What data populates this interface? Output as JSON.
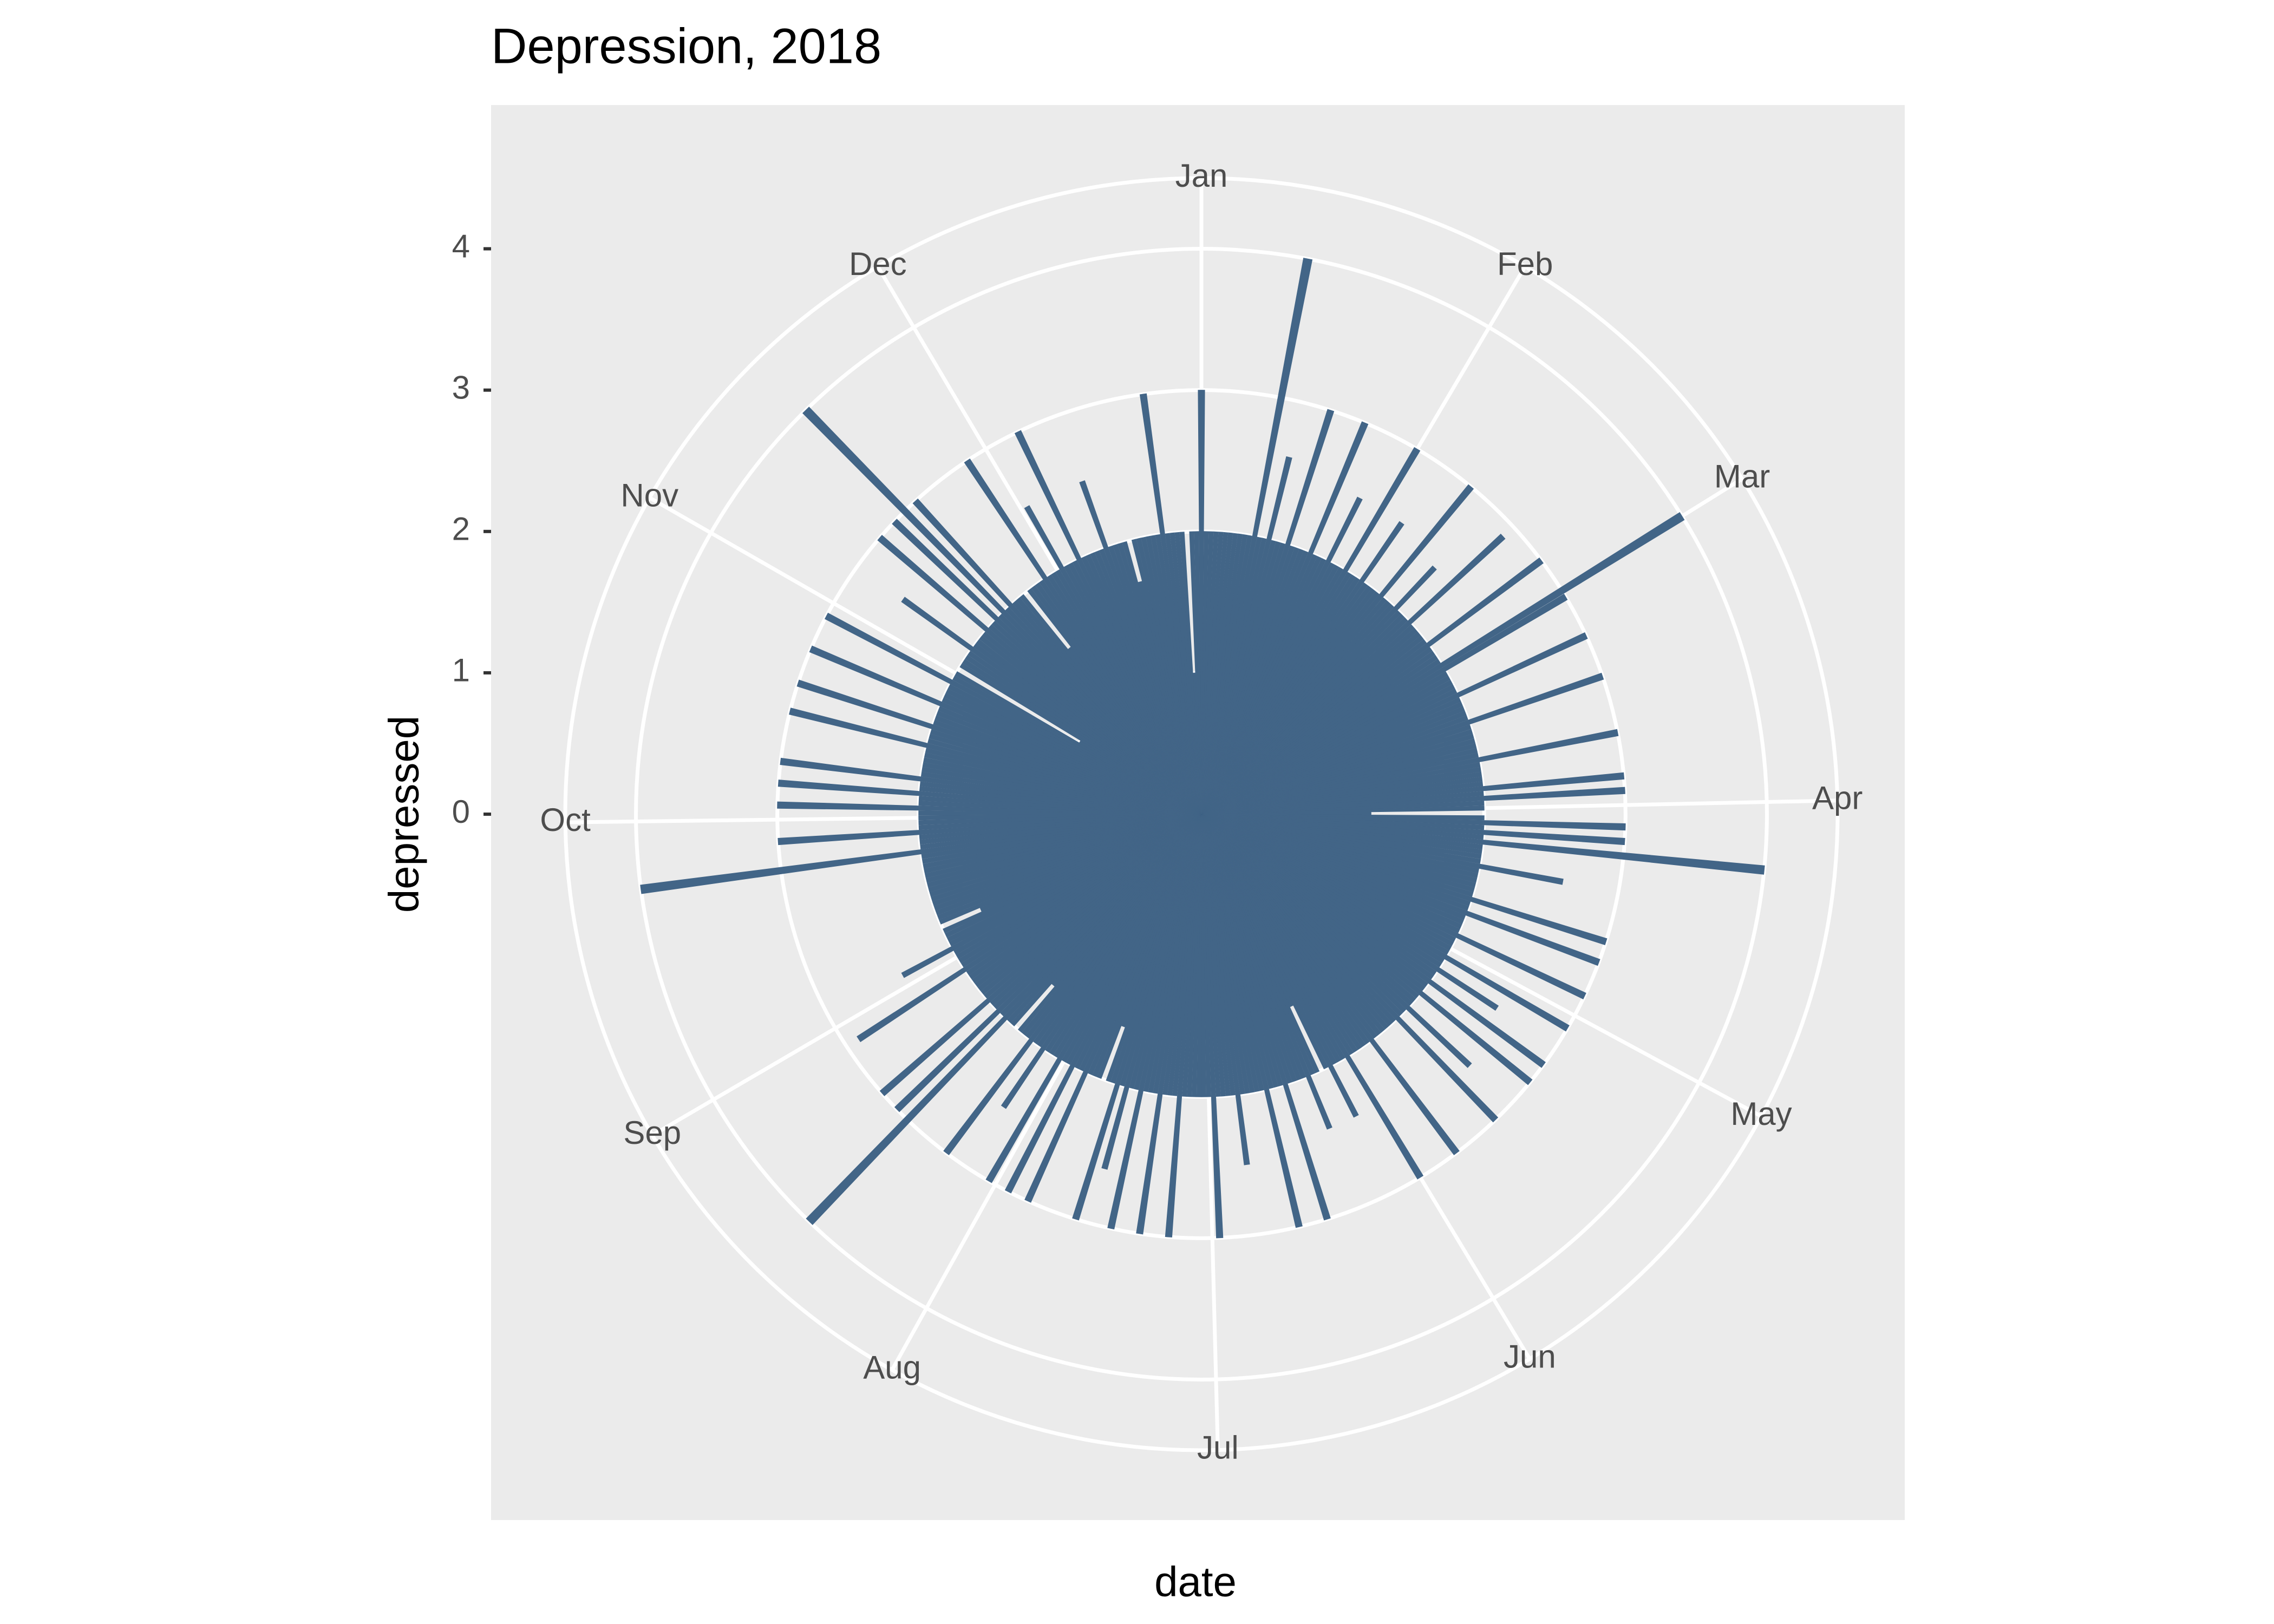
{
  "chart_data": {
    "type": "polar-bar",
    "title": "Depression, 2018",
    "x_label": "date",
    "y_label": "depressed",
    "color": "#426587",
    "grid": true,
    "xlim": [
      1,
      366
    ],
    "xticks": [
      {
        "value": 1,
        "label": "Jan"
      },
      {
        "value": 32,
        "label": "Feb"
      },
      {
        "value": 60,
        "label": "Mar"
      },
      {
        "value": 91,
        "label": "Apr"
      },
      {
        "value": 121,
        "label": "May"
      },
      {
        "value": 152,
        "label": "Jun"
      },
      {
        "value": 182,
        "label": "Jul"
      },
      {
        "value": 213,
        "label": "Aug"
      },
      {
        "value": 244,
        "label": "Sep"
      },
      {
        "value": 274,
        "label": "Oct"
      },
      {
        "value": 305,
        "label": "Nov"
      },
      {
        "value": 335,
        "label": "Dec"
      }
    ],
    "ylim": [
      0,
      4.5
    ],
    "yticks": [
      0,
      1,
      2,
      3,
      4
    ],
    "x": [
      1,
      2,
      3,
      4,
      5,
      6,
      7,
      8,
      9,
      10,
      11,
      12,
      13,
      14,
      15,
      16,
      17,
      18,
      19,
      20,
      21,
      22,
      23,
      24,
      25,
      26,
      27,
      28,
      29,
      30,
      31,
      32,
      33,
      34,
      35,
      36,
      37,
      38,
      39,
      40,
      41,
      42,
      43,
      44,
      45,
      46,
      47,
      48,
      49,
      50,
      51,
      52,
      53,
      54,
      55,
      56,
      57,
      58,
      59,
      60,
      61,
      62,
      63,
      64,
      65,
      66,
      67,
      68,
      69,
      70,
      71,
      72,
      73,
      74,
      75,
      76,
      77,
      78,
      79,
      80,
      81,
      82,
      83,
      84,
      85,
      86,
      87,
      88,
      89,
      90,
      91,
      92,
      93,
      94,
      95,
      96,
      97,
      98,
      99,
      100,
      101,
      102,
      103,
      104,
      105,
      106,
      107,
      108,
      109,
      110,
      111,
      112,
      113,
      114,
      115,
      116,
      117,
      118,
      119,
      120,
      121,
      122,
      123,
      124,
      125,
      126,
      127,
      128,
      129,
      130,
      131,
      132,
      133,
      134,
      135,
      136,
      137,
      138,
      139,
      140,
      141,
      142,
      143,
      144,
      145,
      146,
      147,
      148,
      149,
      150,
      151,
      152,
      153,
      154,
      155,
      156,
      157,
      158,
      159,
      160,
      161,
      162,
      163,
      164,
      165,
      166,
      167,
      168,
      169,
      170,
      171,
      172,
      173,
      174,
      175,
      176,
      177,
      178,
      179,
      180,
      181,
      182,
      183,
      184,
      185,
      186,
      187,
      188,
      189,
      190,
      191,
      192,
      193,
      194,
      195,
      196,
      197,
      198,
      199,
      200,
      201,
      202,
      203,
      204,
      205,
      206,
      207,
      208,
      209,
      210,
      211,
      212,
      213,
      214,
      215,
      216,
      217,
      218,
      219,
      220,
      221,
      222,
      223,
      224,
      225,
      226,
      227,
      228,
      229,
      230,
      231,
      232,
      233,
      234,
      235,
      236,
      237,
      238,
      239,
      240,
      241,
      242,
      243,
      244,
      245,
      246,
      247,
      248,
      249,
      250,
      251,
      252,
      253,
      254,
      255,
      256,
      257,
      258,
      259,
      260,
      261,
      262,
      263,
      264,
      265,
      266,
      267,
      268,
      269,
      270,
      271,
      272,
      273,
      274,
      275,
      276,
      277,
      278,
      279,
      280,
      281,
      282,
      283,
      284,
      285,
      286,
      287,
      288,
      289,
      290,
      291,
      292,
      293,
      294,
      295,
      296,
      297,
      298,
      299,
      300,
      301,
      302,
      303,
      304,
      305,
      306,
      307,
      308,
      309,
      310,
      311,
      312,
      313,
      314,
      315,
      316,
      317,
      318,
      319,
      320,
      321,
      322,
      323,
      324,
      325,
      326,
      327,
      328,
      329,
      330,
      331,
      332,
      333,
      334,
      335,
      336,
      337,
      338,
      339,
      340,
      341,
      342,
      343,
      344,
      345,
      346,
      347,
      348,
      349,
      350,
      351,
      352,
      353,
      354,
      355,
      356,
      357,
      358,
      359,
      360,
      361,
      362,
      363,
      364,
      365
    ],
    "values": [
      3,
      2,
      2,
      2,
      2,
      2,
      2,
      2,
      2,
      2,
      2,
      4,
      2,
      2,
      2.6,
      2,
      2,
      2,
      3,
      2,
      2,
      2,
      2,
      3,
      2,
      2,
      2,
      2.5,
      2,
      2,
      2,
      3,
      2,
      2,
      2,
      2.5,
      2,
      2,
      2,
      2,
      3,
      2,
      2,
      2,
      2.4,
      2,
      2,
      2,
      2.9,
      2,
      2,
      2,
      2,
      2,
      3,
      2,
      2,
      2,
      2,
      4,
      3,
      2,
      2,
      2,
      2,
      2,
      3,
      2,
      2,
      2,
      2,
      2,
      3,
      2,
      2,
      2,
      2,
      2,
      2,
      2,
      3,
      2,
      2,
      2,
      2,
      2,
      3,
      2,
      3,
      2,
      2,
      1.2,
      2,
      3,
      2,
      3,
      2,
      4,
      2,
      2,
      2,
      2,
      2.6,
      2,
      2,
      2,
      2,
      2,
      2,
      3,
      2,
      2,
      3,
      2,
      2,
      2,
      2,
      3,
      2,
      2,
      2,
      2,
      3,
      2,
      2,
      2.5,
      2,
      2,
      3,
      2,
      2,
      3,
      2,
      2,
      2,
      2.6,
      2,
      2,
      3,
      2,
      2,
      2,
      2,
      2,
      2,
      3,
      2,
      2,
      2,
      2,
      2,
      3,
      2,
      2,
      2,
      2.4,
      2,
      1.5,
      2,
      2,
      2.4,
      2,
      2,
      2,
      2,
      3,
      2,
      2,
      2,
      3,
      2,
      2,
      2,
      2,
      2,
      2.5,
      2,
      2,
      2,
      2,
      3,
      2,
      2,
      2,
      2,
      2,
      2,
      3,
      2,
      2,
      2,
      3,
      2,
      2,
      2,
      3,
      2,
      2,
      2.6,
      2,
      3,
      2,
      2,
      1.6,
      2,
      2,
      2,
      3,
      2,
      2,
      3,
      2,
      2,
      3,
      2,
      2,
      2,
      2.5,
      2,
      2,
      3,
      2,
      2,
      2,
      1.6,
      2,
      2,
      4,
      2,
      3,
      2,
      2,
      3,
      2,
      2,
      2,
      2,
      2,
      2,
      2,
      2.9,
      2,
      2,
      2,
      2,
      2.4,
      2,
      2,
      2,
      2,
      1.7,
      2,
      2,
      2,
      2,
      2,
      2,
      2,
      2,
      2,
      2,
      2,
      2,
      2,
      2,
      2,
      4,
      2,
      2,
      2,
      3,
      2,
      2,
      2,
      2,
      3,
      2,
      2,
      3,
      2,
      2,
      3,
      2,
      2,
      2,
      2,
      2,
      2,
      3,
      2,
      2,
      2,
      3,
      2,
      2,
      2,
      2,
      3,
      2,
      2,
      2,
      2,
      3,
      2,
      2,
      1,
      2,
      2,
      2,
      2,
      2.6,
      2,
      2,
      2,
      2,
      3,
      2,
      2,
      3,
      2,
      4,
      2,
      3,
      2,
      2,
      2,
      1.5,
      2,
      2,
      2,
      2,
      3,
      2,
      2,
      2,
      2.5,
      2,
      2,
      2,
      3,
      2,
      2,
      2,
      2,
      2,
      2.5,
      2,
      2,
      2,
      2,
      1.7,
      2,
      2,
      2,
      2,
      2,
      2,
      3,
      2,
      2,
      2,
      2,
      1,
      2,
      2
    ]
  }
}
